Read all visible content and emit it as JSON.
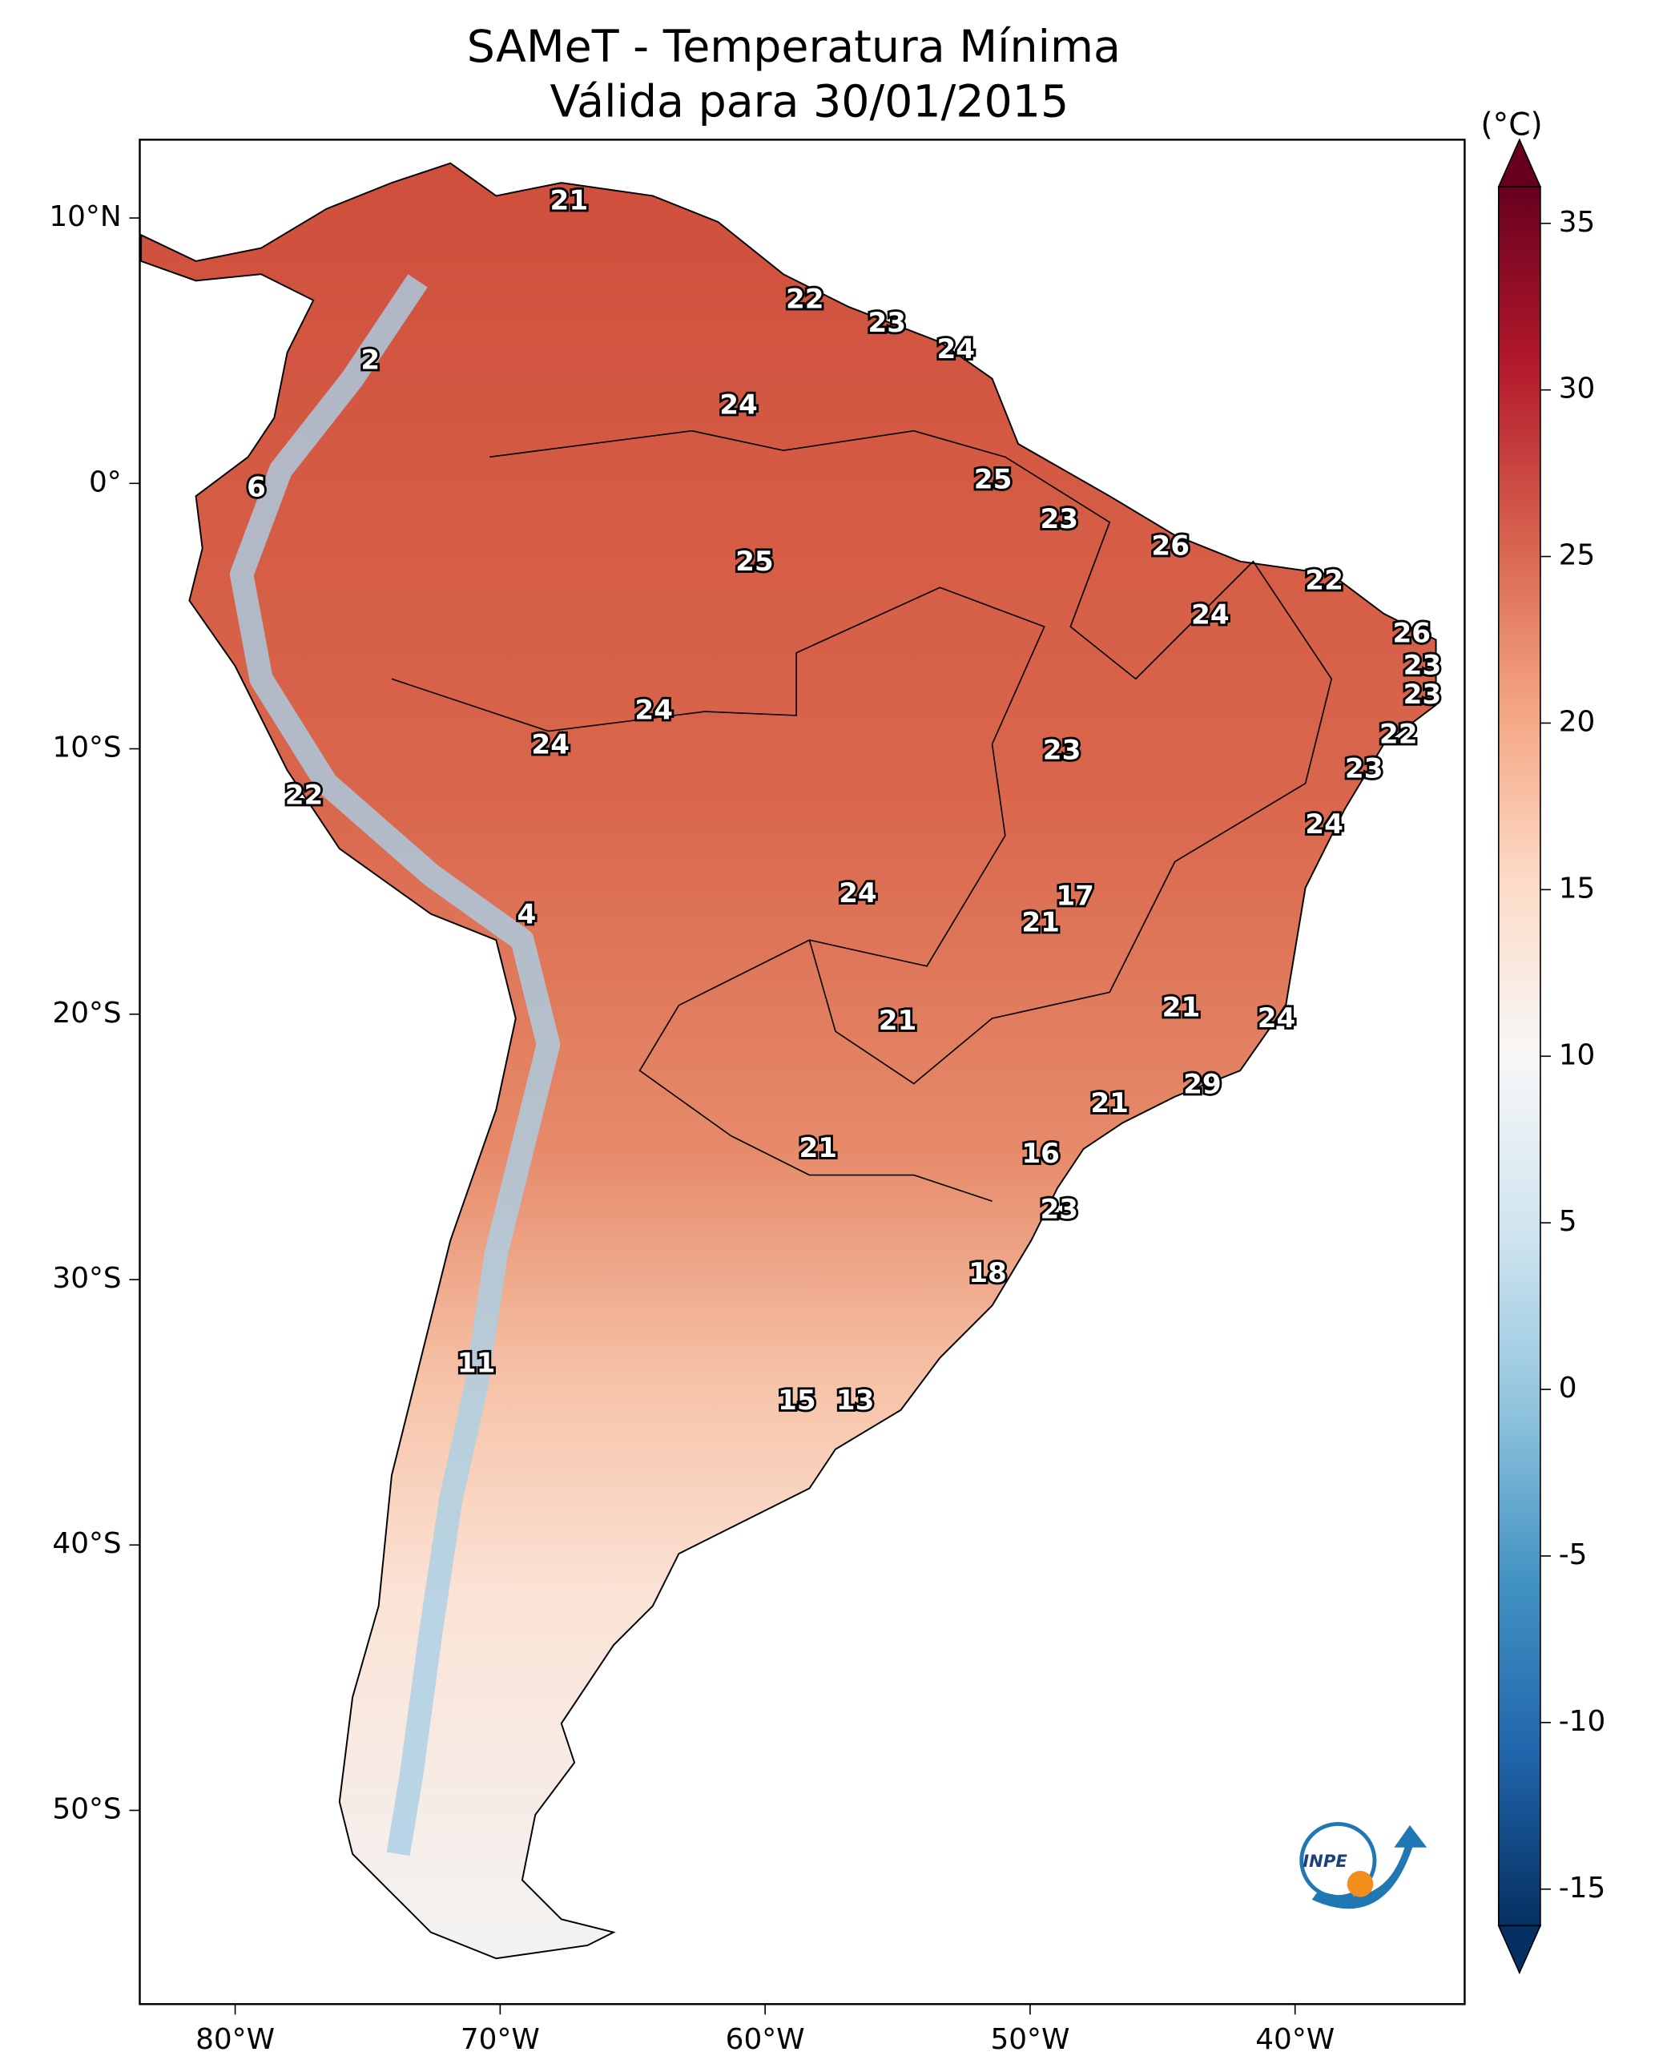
{
  "chart_data": {
    "type": "map",
    "title": "SAMeT - Temperatura Mínima",
    "subtitle": "Válida para 30/01/2015",
    "xlim": [
      -83.6,
      -33.6
    ],
    "ylim": [
      -57.3,
      12.95
    ],
    "xticks": [
      {
        "value": -80,
        "label": "80°W"
      },
      {
        "value": -70,
        "label": "70°W"
      },
      {
        "value": -60,
        "label": "60°W"
      },
      {
        "value": -50,
        "label": "50°W"
      },
      {
        "value": -40,
        "label": "40°W"
      }
    ],
    "yticks": [
      {
        "value": 10,
        "label": "10°N"
      },
      {
        "value": 0,
        "label": "0°"
      },
      {
        "value": -10,
        "label": "10°S"
      },
      {
        "value": -20,
        "label": "20°S"
      },
      {
        "value": -30,
        "label": "30°S"
      },
      {
        "value": -40,
        "label": "40°S"
      },
      {
        "value": -50,
        "label": "50°S"
      }
    ],
    "colorbar": {
      "label": "(°C)",
      "lim": [
        -16.1,
        36.1
      ],
      "ticks": [
        -15,
        -10,
        -5,
        0,
        5,
        10,
        15,
        20,
        25,
        30,
        35
      ],
      "colors": [
        "#053061",
        "#2166ac",
        "#4393c3",
        "#92c5de",
        "#d1e5f0",
        "#f7f7f7",
        "#fddbc7",
        "#f4a582",
        "#d6604d",
        "#b2182b",
        "#67001f"
      ]
    },
    "stations": {
      "lon": [
        -67.4,
        -74.9,
        -58.5,
        -55.4,
        -52.8,
        -61.0,
        -79.2,
        -51.4,
        -48.9,
        -60.4,
        -44.7,
        -38.9,
        -43.2,
        -35.6,
        -35.2,
        -35.2,
        -64.2,
        -68.1,
        -48.8,
        -36.1,
        -37.4,
        -77.4,
        -38.9,
        -56.5,
        -48.3,
        -49.6,
        -69.0,
        -44.3,
        -40.7,
        -55.0,
        -43.5,
        -47.0,
        -58.0,
        -49.6,
        -48.9,
        -51.6,
        -70.9,
        -58.8,
        -56.6
      ],
      "lat": [
        10.6,
        4.6,
        6.9,
        6.0,
        5.0,
        2.9,
        -0.2,
        0.1,
        -1.4,
        -3.0,
        -2.4,
        -3.7,
        -5.0,
        -5.7,
        -6.9,
        -8.0,
        -8.6,
        -9.9,
        -10.1,
        -9.5,
        -10.8,
        -11.8,
        -12.9,
        -15.5,
        -15.6,
        -16.6,
        -16.3,
        -19.8,
        -20.2,
        -20.3,
        -22.7,
        -23.4,
        -25.1,
        -25.3,
        -27.4,
        -29.8,
        -33.2,
        -34.6,
        -34.6
      ],
      "values": [
        21,
        2,
        22,
        23,
        24,
        24,
        6,
        25,
        23,
        25,
        26,
        22,
        24,
        26,
        23,
        23,
        24,
        24,
        23,
        22,
        23,
        22,
        24,
        24,
        17,
        21,
        4,
        21,
        24,
        21,
        29,
        21,
        21,
        16,
        23,
        18,
        11,
        15,
        13
      ]
    },
    "logo_text": "INPE"
  }
}
